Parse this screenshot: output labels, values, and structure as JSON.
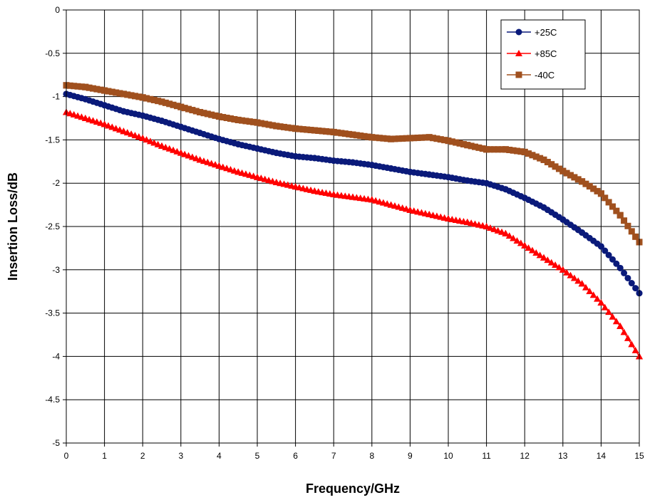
{
  "chart_data": {
    "type": "line",
    "title": "",
    "xlabel": "Frequency/GHz",
    "ylabel": "Insertion Loss/dB",
    "xlim": [
      0,
      15
    ],
    "ylim": [
      -5,
      0
    ],
    "x_ticks": [
      0,
      1,
      2,
      3,
      4,
      5,
      6,
      7,
      8,
      9,
      10,
      11,
      12,
      13,
      14,
      15
    ],
    "x_tick_labels": [
      "0",
      "1",
      "2",
      "3",
      "4",
      "5",
      "6",
      "7",
      "8",
      "9",
      "10",
      "11",
      "12",
      "13",
      "14",
      "15"
    ],
    "y_ticks": [
      0,
      -0.5,
      -1,
      -1.5,
      -2,
      -2.5,
      -3,
      -3.5,
      -4,
      -4.5,
      -5
    ],
    "y_tick_labels": [
      "0",
      "-0.5",
      "-1",
      "-1.5",
      "-2",
      "-2.5",
      "-3",
      "-3.5",
      "-4",
      "-4.5",
      "-5"
    ],
    "grid": true,
    "legend_position": "top-right",
    "series": [
      {
        "name": "+25C",
        "color": "#0a1a7a",
        "marker": "circle",
        "x": [
          0,
          0.5,
          1,
          1.5,
          2,
          2.5,
          3,
          3.5,
          4,
          4.5,
          5,
          5.5,
          6,
          6.5,
          7,
          7.5,
          8,
          8.5,
          9,
          9.5,
          10,
          10.5,
          11,
          11.5,
          12,
          12.5,
          13,
          13.5,
          14,
          14.5,
          15
        ],
        "values": [
          -0.97,
          -1.03,
          -1.1,
          -1.17,
          -1.22,
          -1.28,
          -1.35,
          -1.42,
          -1.49,
          -1.55,
          -1.6,
          -1.65,
          -1.69,
          -1.71,
          -1.74,
          -1.76,
          -1.79,
          -1.83,
          -1.87,
          -1.9,
          -1.93,
          -1.97,
          -2.0,
          -2.07,
          -2.17,
          -2.28,
          -2.42,
          -2.57,
          -2.73,
          -2.98,
          -3.27
        ]
      },
      {
        "name": "+85C",
        "color": "#ff0000",
        "marker": "triangle",
        "x": [
          0,
          0.5,
          1,
          1.5,
          2,
          2.5,
          3,
          3.5,
          4,
          4.5,
          5,
          5.5,
          6,
          6.5,
          7,
          7.5,
          8,
          8.5,
          9,
          9.5,
          10,
          10.5,
          11,
          11.5,
          12,
          12.5,
          13,
          13.5,
          14,
          14.5,
          15
        ],
        "values": [
          -1.18,
          -1.25,
          -1.32,
          -1.4,
          -1.48,
          -1.57,
          -1.65,
          -1.73,
          -1.8,
          -1.87,
          -1.93,
          -1.99,
          -2.04,
          -2.09,
          -2.13,
          -2.16,
          -2.19,
          -2.25,
          -2.31,
          -2.36,
          -2.41,
          -2.45,
          -2.5,
          -2.58,
          -2.72,
          -2.86,
          -3.0,
          -3.16,
          -3.38,
          -3.65,
          -4.0
        ]
      },
      {
        "name": "-40C",
        "color": "#a0501e",
        "marker": "square",
        "x": [
          0,
          0.5,
          1,
          1.5,
          2,
          2.5,
          3,
          3.5,
          4,
          4.5,
          5,
          5.5,
          6,
          6.5,
          7,
          7.5,
          8,
          8.5,
          9,
          9.5,
          10,
          10.5,
          11,
          11.5,
          12,
          12.5,
          13,
          13.5,
          14,
          14.5,
          15
        ],
        "values": [
          -0.87,
          -0.89,
          -0.93,
          -0.97,
          -1.01,
          -1.06,
          -1.12,
          -1.18,
          -1.23,
          -1.27,
          -1.3,
          -1.34,
          -1.37,
          -1.39,
          -1.41,
          -1.44,
          -1.47,
          -1.49,
          -1.48,
          -1.47,
          -1.51,
          -1.56,
          -1.61,
          -1.61,
          -1.64,
          -1.73,
          -1.86,
          -1.98,
          -2.12,
          -2.37,
          -2.68
        ]
      }
    ]
  }
}
